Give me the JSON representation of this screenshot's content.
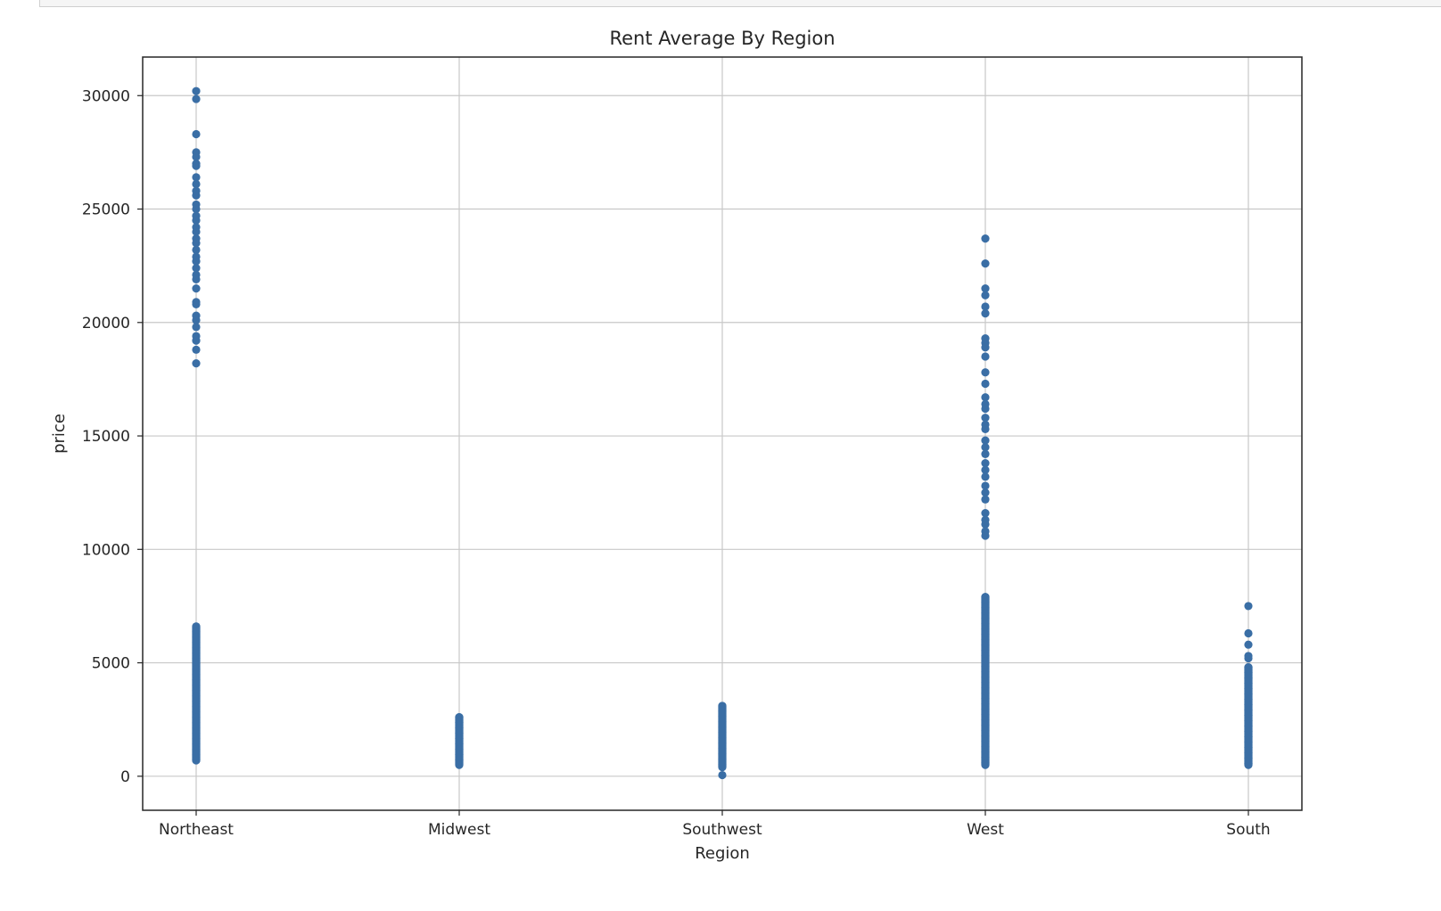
{
  "colors": {
    "marker": "#3a6ea5",
    "grid": "#c8c8c8",
    "axis": "#262626",
    "toolbar": "#f5f5f5"
  },
  "chart_data": {
    "type": "scatter",
    "title": "Rent Average By Region",
    "xlabel": "Region",
    "ylabel": "price",
    "categories": [
      "Northeast",
      "Midwest",
      "Southwest",
      "West",
      "South"
    ],
    "y_ticks": [
      0,
      5000,
      10000,
      15000,
      20000,
      25000,
      30000
    ],
    "y_tick_labels": [
      "0",
      "5000",
      "10000",
      "15000",
      "20000",
      "25000",
      "30000"
    ],
    "ylim": [
      -1500,
      31700
    ],
    "grid": true,
    "series": [
      {
        "category": "Northeast",
        "points": [
          30200,
          29850,
          28300,
          27500,
          27300,
          27000,
          26900,
          26400,
          26100,
          25800,
          25600,
          25200,
          25000,
          24700,
          24500,
          24200,
          24000,
          23700,
          23500,
          23200,
          22900,
          22700,
          22400,
          22100,
          21900,
          21500,
          20900,
          20800,
          20300,
          20100,
          19800,
          19400,
          19200,
          18800,
          18200
        ],
        "dense_ranges": [
          [
            700,
            6600
          ]
        ]
      },
      {
        "category": "Midwest",
        "points": [],
        "dense_ranges": [
          [
            500,
            2600
          ]
        ]
      },
      {
        "category": "Southwest",
        "points": [
          50
        ],
        "dense_ranges": [
          [
            400,
            3100
          ]
        ]
      },
      {
        "category": "West",
        "points": [
          23700,
          22600,
          21500,
          21200,
          20700,
          20400,
          19300,
          19100,
          18900,
          18500,
          17800,
          17300,
          16700,
          16400,
          16200,
          15800,
          15500,
          15300,
          14800,
          14500,
          14200,
          13800,
          13500,
          13200,
          12800,
          12500,
          12200,
          11600,
          11300,
          11100,
          10800,
          10600
        ],
        "dense_ranges": [
          [
            500,
            7900
          ]
        ]
      },
      {
        "category": "South",
        "points": [
          7500,
          6300,
          5800,
          5300,
          5200
        ],
        "dense_ranges": [
          [
            500,
            4800
          ]
        ]
      }
    ]
  }
}
